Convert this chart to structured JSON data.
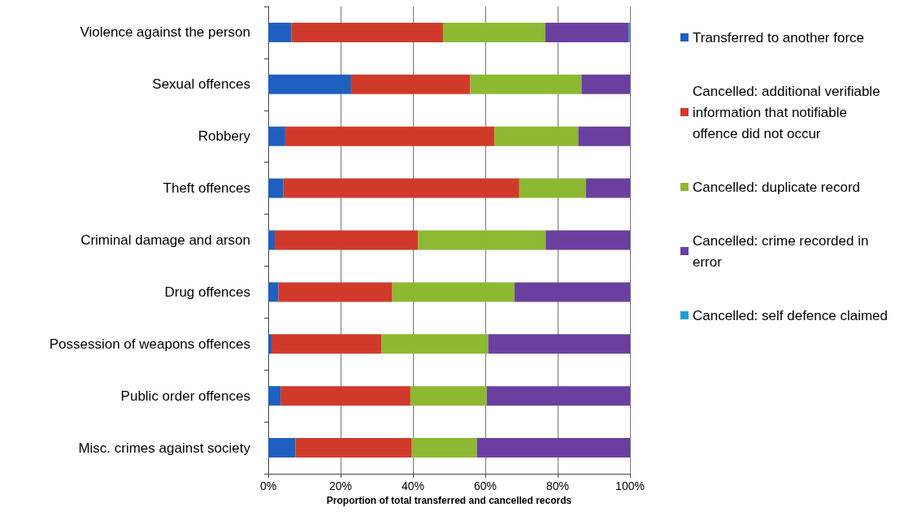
{
  "chart_data": {
    "type": "bar",
    "orientation": "horizontal",
    "stacked": true,
    "xlabel": "Proportion of total transferred and cancelled records",
    "categories": [
      "Violence against the person",
      "Sexual offences",
      "Robbery",
      "Theft offences",
      "Criminal damage and arson",
      "Drug offences",
      "Possession of weapons offences",
      "Public order offences",
      "Misc. crimes against society"
    ],
    "series": [
      {
        "name": "Transferred to another force",
        "color": "#1f5fbf",
        "values": [
          6.4,
          22.9,
          4.7,
          4.2,
          1.8,
          2.8,
          0.9,
          3.4,
          7.5
        ]
      },
      {
        "name": "Cancelled: additional verifiable information that notifiable offence did not occur",
        "color": "#d03a2a",
        "values": [
          41.9,
          32.9,
          57.8,
          65.2,
          39.6,
          31.5,
          30.4,
          35.9,
          32.2
        ]
      },
      {
        "name": "Cancelled: duplicate record",
        "color": "#8db832",
        "values": [
          28.3,
          30.8,
          23.2,
          18.4,
          35.3,
          33.8,
          29.5,
          21.1,
          18.0
        ]
      },
      {
        "name": "Cancelled: crime recorded in error",
        "color": "#6a3fa0",
        "values": [
          23.1,
          13.4,
          14.3,
          12.2,
          23.3,
          31.9,
          39.2,
          39.6,
          42.3
        ]
      },
      {
        "name": "Cancelled: self defence claimed",
        "color": "#1e9fd8",
        "values": [
          0.3,
          0,
          0,
          0,
          0,
          0,
          0,
          0,
          0
        ]
      }
    ],
    "xlim": [
      0,
      100
    ],
    "xticks": [
      {
        "value": 0,
        "label": "0%"
      },
      {
        "value": 20,
        "label": "20%"
      },
      {
        "value": 40,
        "label": "40%"
      },
      {
        "value": 60,
        "label": "60%"
      },
      {
        "value": 80,
        "label": "80%"
      },
      {
        "value": 100,
        "label": "100%"
      }
    ],
    "grid": "x",
    "legend": "right"
  }
}
